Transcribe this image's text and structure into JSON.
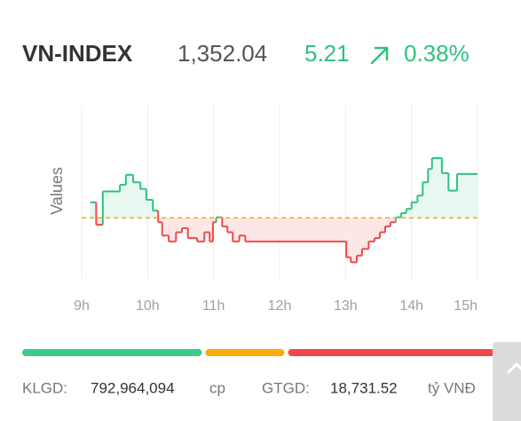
{
  "header": {
    "title": "VN-INDEX",
    "price": "1,352.04",
    "change": "5.21",
    "change_percent": "0.38%"
  },
  "chart_data": {
    "type": "step",
    "y_label": "Values",
    "x": [
      9.13,
      9.22,
      9.32,
      9.58,
      9.67,
      9.78,
      9.89,
      9.98,
      10.08,
      10.16,
      10.22,
      10.32,
      10.43,
      10.52,
      10.61,
      10.75,
      10.86,
      10.94,
      10.99,
      11.04,
      11.13,
      11.21,
      11.29,
      11.39,
      11.48,
      13.01,
      13.08,
      13.17,
      13.25,
      13.35,
      13.44,
      13.52,
      13.6,
      13.68,
      13.76,
      13.84,
      13.92,
      14.0,
      14.09,
      14.17,
      14.25,
      14.31,
      14.46,
      14.56,
      14.69
    ],
    "values": [
      1348.7,
      1346.0,
      1350.0,
      1350.8,
      1352.0,
      1351.1,
      1350.3,
      1349.0,
      1347.7,
      1346.3,
      1344.7,
      1344.0,
      1345.1,
      1345.6,
      1344.4,
      1344.0,
      1345.1,
      1344.0,
      1346.3,
      1346.9,
      1345.8,
      1345.1,
      1344.0,
      1344.7,
      1344.0,
      1342.1,
      1341.5,
      1342.3,
      1343.1,
      1344.0,
      1344.4,
      1345.1,
      1345.8,
      1346.3,
      1346.9,
      1347.4,
      1347.9,
      1348.7,
      1349.5,
      1351.1,
      1352.7,
      1354.0,
      1352.2,
      1350.1,
      1352.1
    ],
    "reference": 1346.83,
    "up_color": "#2ec27e",
    "down_color": "#ef4a4a",
    "reference_color": "#f5a623",
    "up_fill": "#e8f8f0",
    "down_fill": "#fde6e6",
    "xlim": [
      9,
      15
    ],
    "xticks": [
      {
        "value": 9,
        "label": "9h"
      },
      {
        "value": 10,
        "label": "10h"
      },
      {
        "value": 11,
        "label": "11h"
      },
      {
        "value": 12,
        "label": "12h"
      },
      {
        "value": 13,
        "label": "13h"
      },
      {
        "value": 14,
        "label": "14h"
      },
      {
        "value": 15,
        "label": "15h"
      }
    ],
    "ylim": [
      1339.4,
      1360.4
    ],
    "grid": true
  },
  "breadth": {
    "values": [
      202,
      89,
      232
    ],
    "colors": [
      "#3cc98a",
      "#f8ad0a",
      "#ef4a4a"
    ]
  },
  "footer": {
    "volume_label": "KLGD:",
    "volume": "792,964,094",
    "volume_unit": "cp",
    "value_label": "GTGD:",
    "value": "18,731.52",
    "value_unit": "tỷ VNĐ"
  }
}
